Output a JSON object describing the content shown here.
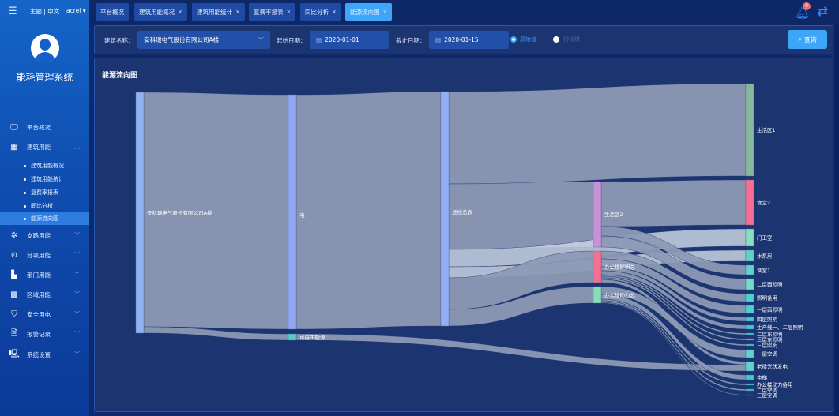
{
  "header": {
    "theme_label": "主题 | 中文",
    "username": "acrel",
    "notification_count": "0",
    "tabs": [
      {
        "label": "平台概况",
        "closable": false,
        "active": false
      },
      {
        "label": "建筑用能概况",
        "closable": true,
        "active": false
      },
      {
        "label": "建筑用能统计",
        "closable": true,
        "active": false
      },
      {
        "label": "复费率报表",
        "closable": true,
        "active": false
      },
      {
        "label": "同比分析",
        "closable": true,
        "active": false
      },
      {
        "label": "能源流向图",
        "closable": true,
        "active": true
      }
    ],
    "close_glyph": "×"
  },
  "sidebar": {
    "system_title": "能耗管理系统",
    "items": [
      {
        "label": "平台概况",
        "icon": "monitor-icon"
      },
      {
        "label": "建筑用能",
        "icon": "building-icon",
        "expanded": true
      },
      {
        "label": "支路用能",
        "icon": "branch-icon"
      },
      {
        "label": "分项用能",
        "icon": "item-icon"
      },
      {
        "label": "部门用能",
        "icon": "folder-icon"
      },
      {
        "label": "区域用能",
        "icon": "area-icon"
      },
      {
        "label": "安全用电",
        "icon": "shield-icon"
      },
      {
        "label": "报警记录",
        "icon": "document-icon"
      },
      {
        "label": "系统设置",
        "icon": "settings-icon"
      }
    ],
    "sub_items": [
      "建筑用能概况",
      "建筑用能统计",
      "复费率报表",
      "同比分析",
      "能源流向图"
    ],
    "active_sub": "能源流向图"
  },
  "filter": {
    "building_label": "建筑名称：",
    "building_value": "安科瑞电气股份有限公司A楼",
    "start_label": "起始日期：",
    "start_value": "2020-01-01",
    "end_label": "截止日期：",
    "end_value": "2020-01-15",
    "radio_options": [
      {
        "label": "原始值",
        "selected": true
      },
      {
        "label": "折标煤",
        "selected": false
      }
    ],
    "search_label": "查询"
  },
  "chart": {
    "title": "能源流向图"
  },
  "chart_data": {
    "type": "sankey",
    "title": "能源流向图",
    "nodes": [
      {
        "name": "安科瑞电气股份有限公司A楼",
        "column": 0,
        "color": "#8fb3f5"
      },
      {
        "name": "电",
        "column": 1,
        "color": "#93a8f5"
      },
      {
        "name": "可再生能源",
        "column": 1,
        "color": "#4fd0c8"
      },
      {
        "name": "进线总表",
        "column": 2,
        "color": "#93b0f7"
      },
      {
        "name": "生活区2",
        "column": 3,
        "color": "#c890d6"
      },
      {
        "name": "办公楼照明总",
        "column": 3,
        "color": "#f56f93"
      },
      {
        "name": "办公楼动力总",
        "column": 3,
        "color": "#86dfb4"
      },
      {
        "name": "生活区1",
        "column": 4,
        "color": "#88b89c"
      },
      {
        "name": "食堂2",
        "column": 4,
        "color": "#f56f93"
      },
      {
        "name": "门卫室",
        "column": 4,
        "color": "#88dfc0"
      },
      {
        "name": "水泵房",
        "column": 4,
        "color": "#5fd3c4"
      },
      {
        "name": "食堂1",
        "column": 4,
        "color": "#5fd3d0"
      },
      {
        "name": "二层西照明",
        "column": 4,
        "color": "#6fdcc4"
      },
      {
        "name": "照明备用",
        "column": 4,
        "color": "#4fd0d0"
      },
      {
        "name": "一层西照明",
        "column": 4,
        "color": "#4fd0d0"
      },
      {
        "name": "四层照明",
        "column": 4,
        "color": "#3fc8d8"
      },
      {
        "name": "生产线一、二层照明",
        "column": 4,
        "color": "#3fc8d8"
      },
      {
        "name": "二层东照明",
        "column": 4,
        "color": "#3fc8d8"
      },
      {
        "name": "三层东照明",
        "column": 4,
        "color": "#3fc8d8"
      },
      {
        "name": "三层照明",
        "column": 4,
        "color": "#3fc8d8"
      },
      {
        "name": "一层空调",
        "column": 4,
        "color": "#5fd3d0"
      },
      {
        "name": "老楼光伏发电",
        "column": 4,
        "color": "#5fd3d0"
      },
      {
        "name": "电梯",
        "column": 4,
        "color": "#3fc8d8"
      },
      {
        "name": "办公楼动力备用",
        "column": 4,
        "color": "#3fc8d8"
      },
      {
        "name": "二层空调",
        "column": 4,
        "color": "#3fc8d8"
      },
      {
        "name": "三层空调",
        "column": 4,
        "color": "#3fc8d8"
      }
    ],
    "links": [
      {
        "source": "安科瑞电气股份有限公司A楼",
        "target": "电",
        "value": 297
      },
      {
        "source": "安科瑞电气股份有限公司A楼",
        "target": "可再生能源",
        "value": 8
      },
      {
        "source": "电",
        "target": "进线总表",
        "value": 297
      },
      {
        "source": "可再生能源",
        "target": "老楼光伏发电",
        "value": 8
      },
      {
        "source": "进线总表",
        "target": "生活区1",
        "value": 117
      },
      {
        "source": "进线总表",
        "target": "生活区2",
        "value": 83
      },
      {
        "source": "进线总表",
        "target": "门卫室",
        "value": 22
      },
      {
        "source": "进线总表",
        "target": "水泵房",
        "value": 14
      },
      {
        "source": "进线总表",
        "target": "办公楼照明总",
        "value": 40
      },
      {
        "source": "进线总表",
        "target": "办公楼动力总",
        "value": 21
      },
      {
        "source": "生活区2",
        "target": "食堂2",
        "value": 57
      },
      {
        "source": "生活区2",
        "target": "食堂1",
        "value": 12
      },
      {
        "source": "生活区2",
        "target": "二层西照明",
        "value": 14
      },
      {
        "source": "办公楼照明总",
        "target": "照明备用",
        "value": 10
      },
      {
        "source": "办公楼照明总",
        "target": "一层西照明",
        "value": 10
      },
      {
        "source": "办公楼照明总",
        "target": "四层照明",
        "value": 5
      },
      {
        "source": "办公楼照明总",
        "target": "生产线一、二层照明",
        "value": 5
      },
      {
        "source": "办公楼照明总",
        "target": "二层东照明",
        "value": 2
      },
      {
        "source": "办公楼照明总",
        "target": "三层东照明",
        "value": 2
      },
      {
        "source": "办公楼照明总",
        "target": "三层照明",
        "value": 2
      },
      {
        "source": "办公楼照明总",
        "target": "老楼光伏发电",
        "value": 4
      },
      {
        "source": "办公楼动力总",
        "target": "一层空调",
        "value": 10
      },
      {
        "source": "办公楼动力总",
        "target": "电梯",
        "value": 6
      },
      {
        "source": "办公楼动力总",
        "target": "办公楼动力备用",
        "value": 2
      },
      {
        "source": "办公楼动力总",
        "target": "二层空调",
        "value": 2
      },
      {
        "source": "办公楼动力总",
        "target": "三层空调",
        "value": 1
      }
    ],
    "link_color": "#8c9ab5"
  }
}
